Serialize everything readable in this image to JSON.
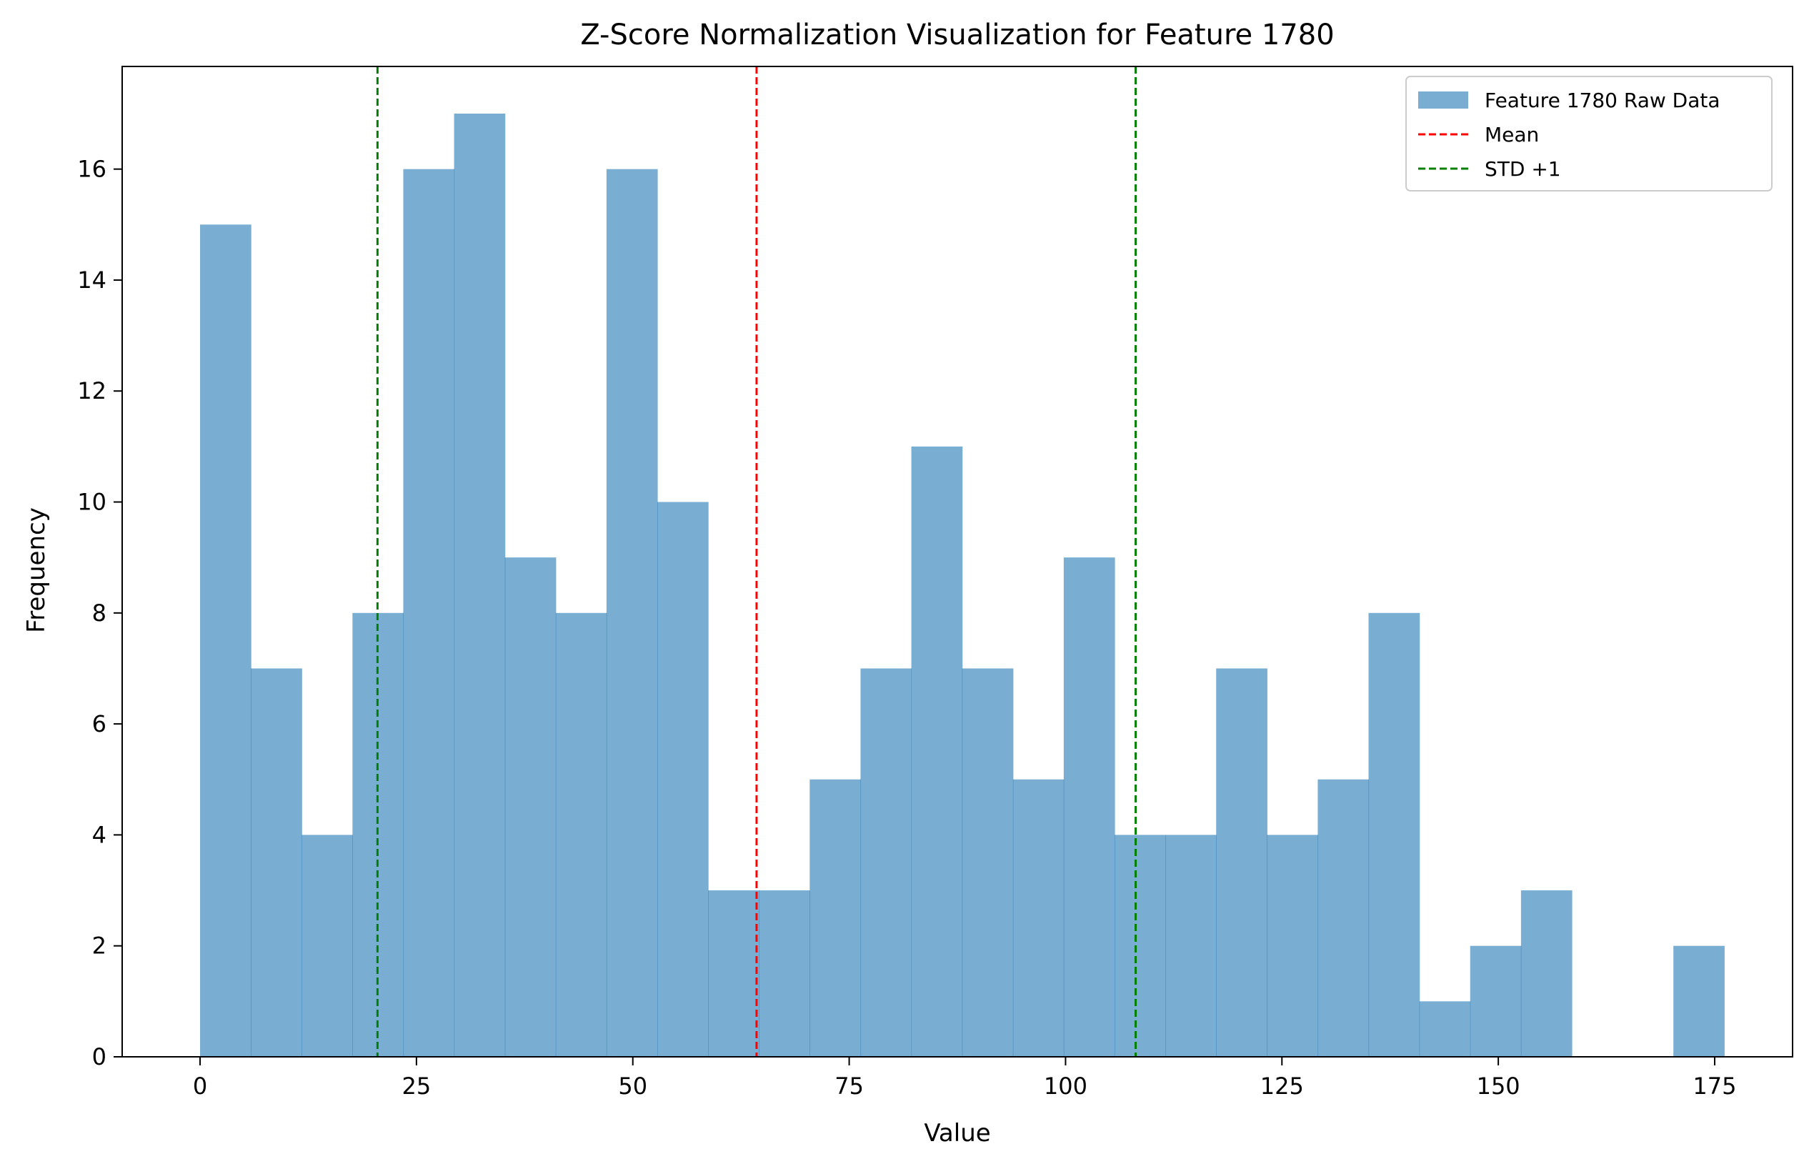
{
  "chart_data": {
    "type": "bar",
    "title": "Z-Score Normalization Visualization for Feature 1780",
    "xlabel": "Value",
    "ylabel": "Frequency",
    "xlim": [
      -9,
      184
    ],
    "ylim": [
      0,
      17.85
    ],
    "x_ticks": [
      0,
      25,
      50,
      75,
      100,
      125,
      150,
      175
    ],
    "y_ticks": [
      0,
      2,
      4,
      6,
      8,
      10,
      12,
      14,
      16
    ],
    "bin_start": 0,
    "bin_width": 5.87,
    "series": [
      {
        "name": "Feature 1780 Raw Data",
        "color": "#1f77b4",
        "opacity": 0.6,
        "values": [
          15,
          7,
          4,
          8,
          16,
          17,
          9,
          8,
          16,
          10,
          3,
          3,
          5,
          7,
          11,
          7,
          5,
          9,
          4,
          4,
          7,
          4,
          5,
          8,
          1,
          2,
          3,
          0,
          0,
          2
        ]
      }
    ],
    "reference_lines": [
      {
        "name": "Mean",
        "x": 64.3,
        "color": "#ff0000",
        "style": "dashed",
        "in_legend": true
      },
      {
        "name": "STD +1",
        "x": 20.5,
        "color": "#008000",
        "style": "dashed",
        "in_legend": true
      },
      {
        "name": "STD +1",
        "x": 108.1,
        "color": "#008000",
        "style": "dashed",
        "in_legend": false
      }
    ],
    "legend": {
      "placement": "top-right",
      "entries": [
        {
          "label": "Feature 1780 Raw Data",
          "kind": "patch",
          "color": "#1f77b4"
        },
        {
          "label": "Mean",
          "kind": "dashed-line",
          "color": "#ff0000"
        },
        {
          "label": "STD +1",
          "kind": "dashed-line",
          "color": "#008000"
        }
      ]
    },
    "grid": false
  }
}
